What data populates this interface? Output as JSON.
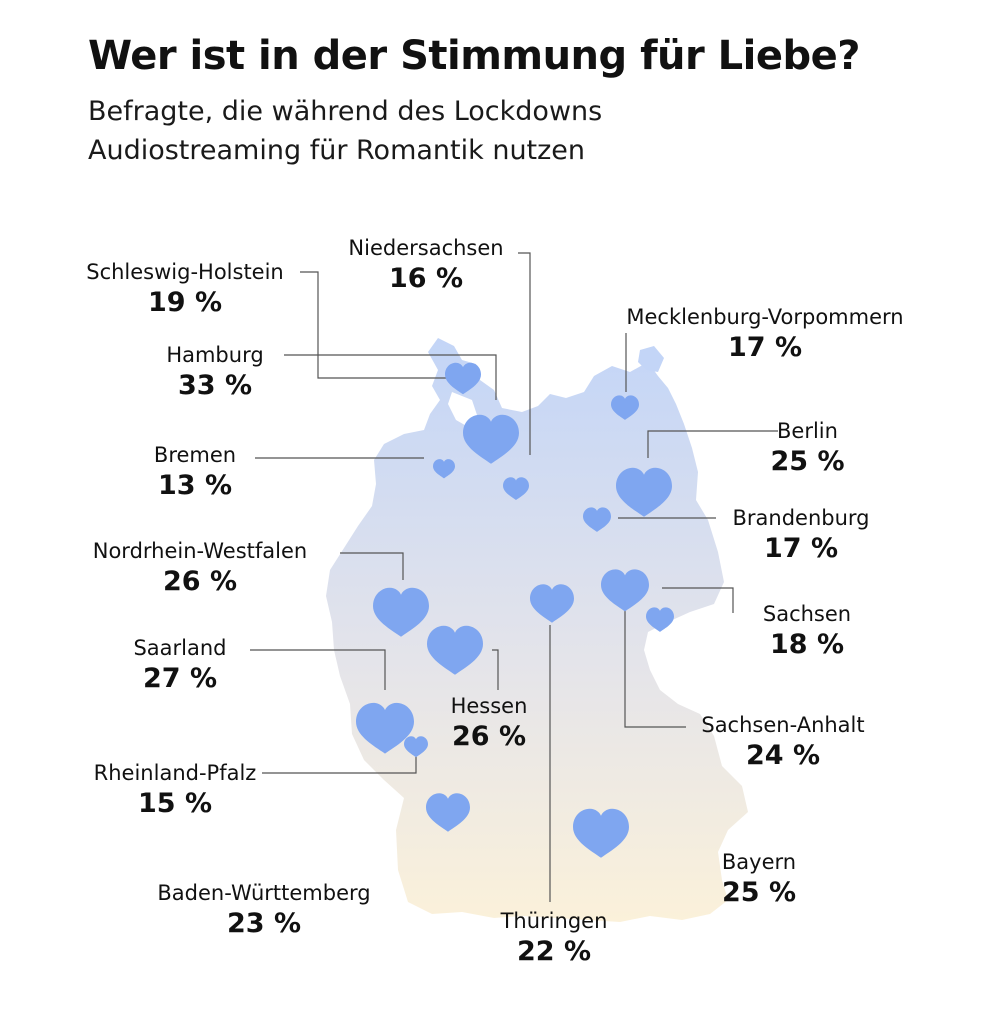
{
  "title": "Wer ist in der Stimmung für Liebe?",
  "subtitle_lines": [
    "Befragte, die während des Lockdowns",
    "Audiostreaming für Romantik nutzen"
  ],
  "colors": {
    "heart": "#7fa6f0",
    "map_north": "#c3d5f7",
    "map_south": "#fbf1da",
    "leader_line": "#555555"
  },
  "regions": {
    "schleswig_holstein": {
      "name": "Schleswig-Holstein",
      "value": "19 %"
    },
    "niedersachsen": {
      "name": "Niedersachsen",
      "value": "16 %"
    },
    "mecklenburg_vorpommern": {
      "name": "Mecklenburg-Vorpommern",
      "value": "17 %"
    },
    "hamburg": {
      "name": "Hamburg",
      "value": "33 %"
    },
    "berlin": {
      "name": "Berlin",
      "value": "25 %"
    },
    "bremen": {
      "name": "Bremen",
      "value": "13 %"
    },
    "brandenburg": {
      "name": "Brandenburg",
      "value": "17 %"
    },
    "nordrhein_westfalen": {
      "name": "Nordrhein-Westfalen",
      "value": "26 %"
    },
    "sachsen": {
      "name": "Sachsen",
      "value": "18 %"
    },
    "saarland": {
      "name": "Saarland",
      "value": "27 %"
    },
    "hessen": {
      "name": "Hessen",
      "value": "26 %"
    },
    "sachsen_anhalt": {
      "name": "Sachsen-Anhalt",
      "value": "24 %"
    },
    "rheinland_pfalz": {
      "name": "Rheinland-Pfalz",
      "value": "15 %"
    },
    "bayern": {
      "name": "Bayern",
      "value": "25 %"
    },
    "baden_wuerttemberg": {
      "name": "Baden-Württemberg",
      "value": "23 %"
    },
    "thueringen": {
      "name": "Thüringen",
      "value": "22 %"
    }
  }
}
